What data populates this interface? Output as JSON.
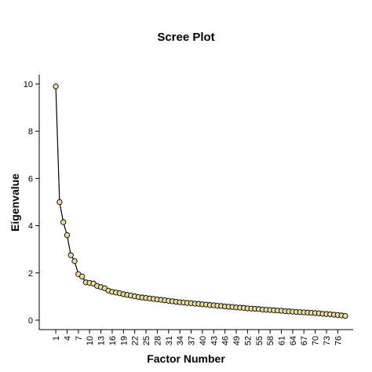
{
  "chart_data": {
    "type": "line",
    "title": "Scree Plot",
    "x_label": "Factor Number",
    "y_label": "Eigenvalue",
    "x": [
      1,
      2,
      3,
      4,
      5,
      6,
      7,
      8,
      9,
      10,
      11,
      12,
      13,
      14,
      15,
      16,
      17,
      18,
      19,
      20,
      21,
      22,
      23,
      24,
      25,
      26,
      27,
      28,
      29,
      30,
      31,
      32,
      33,
      34,
      35,
      36,
      37,
      38,
      39,
      40,
      41,
      42,
      43,
      44,
      45,
      46,
      47,
      48,
      49,
      50,
      51,
      52,
      53,
      54,
      55,
      56,
      57,
      58,
      59,
      60,
      61,
      62,
      63,
      64,
      65,
      66,
      67,
      68,
      69,
      70,
      71,
      72,
      73,
      74,
      75,
      76,
      77,
      78
    ],
    "series": [
      {
        "color": "#e8dca0",
        "values": [
          9.9,
          5.0,
          4.15,
          3.6,
          2.75,
          2.5,
          1.95,
          1.85,
          1.6,
          1.58,
          1.55,
          1.45,
          1.4,
          1.35,
          1.25,
          1.2,
          1.17,
          1.14,
          1.1,
          1.07,
          1.04,
          1.01,
          0.98,
          0.96,
          0.94,
          0.92,
          0.9,
          0.88,
          0.86,
          0.84,
          0.82,
          0.8,
          0.78,
          0.76,
          0.75,
          0.73,
          0.72,
          0.7,
          0.69,
          0.67,
          0.66,
          0.64,
          0.63,
          0.61,
          0.6,
          0.58,
          0.57,
          0.56,
          0.54,
          0.53,
          0.52,
          0.5,
          0.49,
          0.48,
          0.47,
          0.45,
          0.44,
          0.43,
          0.42,
          0.41,
          0.4,
          0.38,
          0.37,
          0.36,
          0.35,
          0.34,
          0.33,
          0.32,
          0.31,
          0.3,
          0.29,
          0.27,
          0.26,
          0.25,
          0.23,
          0.22,
          0.2,
          0.18
        ]
      }
    ],
    "xlim": [
      -3.4,
      80.1
    ],
    "xticks": [
      1,
      4,
      7,
      10,
      13,
      16,
      19,
      22,
      25,
      28,
      31,
      34,
      37,
      40,
      43,
      46,
      49,
      52,
      55,
      58,
      61,
      64,
      67,
      70,
      73,
      76
    ],
    "ylim": [
      -0.4,
      10.4
    ],
    "yticks": [
      0,
      2,
      4,
      6,
      8,
      10
    ]
  }
}
